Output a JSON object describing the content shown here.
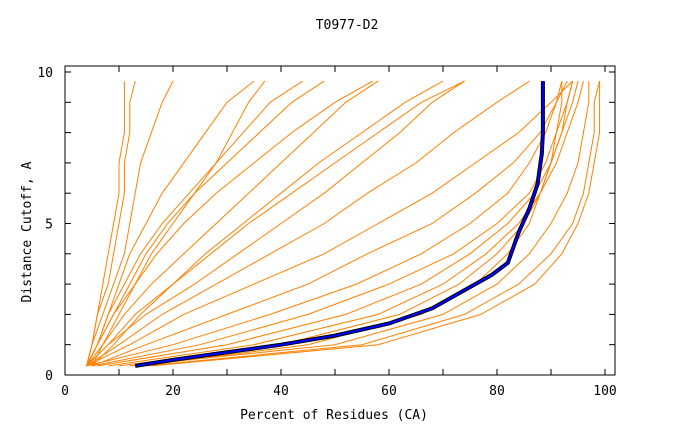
{
  "chart_data": {
    "type": "line",
    "title": "T0977-D2",
    "xlabel": "Percent of Residues (CA)",
    "ylabel": "Distance Cutoff, A",
    "xlim": [
      0,
      102
    ],
    "ylim": [
      0,
      10
    ],
    "xticks": [
      0,
      20,
      40,
      60,
      80,
      100
    ],
    "yticks": [
      0,
      5,
      10
    ],
    "grid": false,
    "colors": {
      "models": "#ff8000",
      "highlight": "#0000ff",
      "highlight_outline": "#000000"
    },
    "model_y_levels": [
      0.3,
      1,
      2,
      3,
      4,
      5,
      6,
      7,
      8,
      9,
      9.7
    ],
    "model_curves_x": [
      [
        14,
        45,
        66,
        76,
        82,
        86,
        88,
        90,
        91,
        92,
        92
      ],
      [
        10,
        40,
        62,
        73,
        80,
        85,
        88,
        90,
        92,
        93,
        94
      ],
      [
        12,
        50,
        70,
        80,
        86,
        90,
        93,
        95,
        96,
        97,
        97
      ],
      [
        8,
        35,
        58,
        70,
        78,
        84,
        88,
        91,
        93,
        95,
        96
      ],
      [
        15,
        55,
        74,
        84,
        90,
        94,
        96,
        97,
        98,
        98,
        99
      ],
      [
        6,
        30,
        52,
        66,
        75,
        82,
        87,
        90,
        92,
        94,
        95
      ],
      [
        5,
        25,
        45,
        60,
        72,
        80,
        86,
        89,
        91,
        93,
        94
      ],
      [
        16,
        58,
        77,
        87,
        92,
        95,
        97,
        98,
        99,
        99,
        99
      ],
      [
        4,
        20,
        38,
        54,
        66,
        75,
        82,
        86,
        89,
        91,
        92
      ],
      [
        5,
        15,
        30,
        45,
        56,
        68,
        76,
        83,
        88,
        91,
        93
      ],
      [
        4,
        12,
        22,
        35,
        48,
        58,
        68,
        76,
        84,
        90,
        94
      ],
      [
        4,
        10,
        18,
        28,
        38,
        48,
        56,
        65,
        72,
        80,
        86
      ],
      [
        4,
        8,
        15,
        24,
        32,
        40,
        48,
        55,
        62,
        68,
        74
      ],
      [
        4,
        8,
        13,
        20,
        26,
        33,
        40,
        47,
        55,
        63,
        70
      ],
      [
        4,
        6,
        9,
        12,
        15,
        19,
        24,
        30,
        36,
        42,
        48
      ],
      [
        4,
        6,
        8,
        10,
        12,
        15,
        18,
        22,
        26,
        30,
        35
      ],
      [
        4,
        5,
        7,
        9,
        11,
        12,
        13,
        14,
        16,
        18,
        20
      ],
      [
        4,
        5,
        6,
        8,
        9,
        10,
        11,
        11,
        12,
        12,
        13
      ],
      [
        4,
        5,
        6,
        7,
        8,
        9,
        10,
        10,
        11,
        11,
        11
      ],
      [
        4,
        6,
        9,
        13,
        17,
        22,
        28,
        35,
        42,
        50,
        57
      ],
      [
        4,
        7,
        11,
        16,
        22,
        28,
        34,
        40,
        46,
        52,
        58
      ],
      [
        4,
        6,
        8,
        11,
        14,
        18,
        23,
        28,
        33,
        38,
        44
      ],
      [
        5,
        9,
        14,
        20,
        27,
        34,
        42,
        50,
        58,
        66,
        74
      ],
      [
        5,
        7,
        10,
        13,
        16,
        20,
        24,
        28,
        31,
        34,
        37
      ]
    ],
    "highlight_curve": [
      [
        13,
        0.3
      ],
      [
        20,
        0.5
      ],
      [
        30,
        0.75
      ],
      [
        40,
        1.0
      ],
      [
        50,
        1.3
      ],
      [
        60,
        1.7
      ],
      [
        68,
        2.2
      ],
      [
        74,
        2.8
      ],
      [
        79,
        3.3
      ],
      [
        82,
        3.7
      ],
      [
        84,
        4.7
      ],
      [
        86,
        5.5
      ],
      [
        87.5,
        6.3
      ],
      [
        88.3,
        7.3
      ],
      [
        88.5,
        8
      ],
      [
        88.5,
        9.7
      ]
    ]
  }
}
